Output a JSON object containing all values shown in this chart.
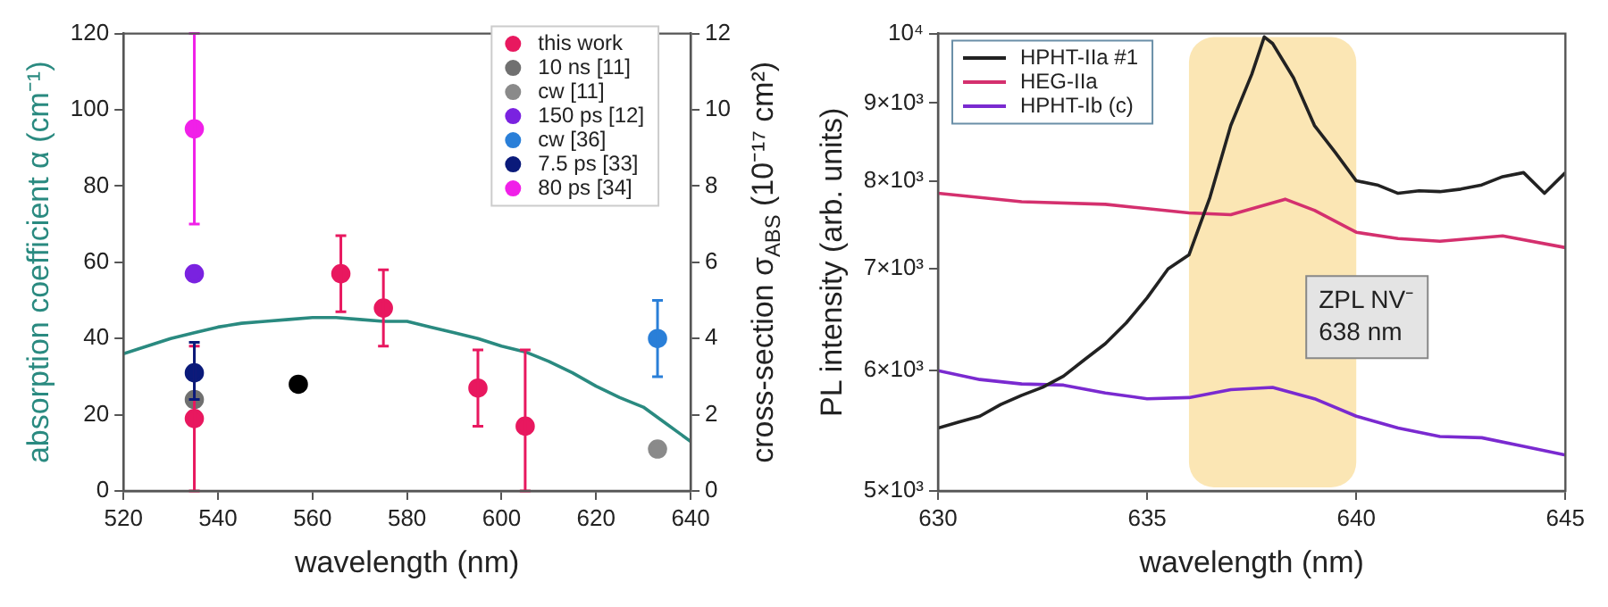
{
  "chart_data": [
    {
      "type": "scatter",
      "xlabel": "wavelength (nm)",
      "ylabel": "absorption coefficient α (cm⁻¹)",
      "y2label": "cross-section σ$_{ABS}$ (10⁻¹⁷ cm²)",
      "xlim": [
        520,
        640
      ],
      "xticks": [
        520,
        540,
        560,
        580,
        600,
        620,
        640
      ],
      "ylim": [
        0,
        120
      ],
      "yticks": [
        0,
        20,
        40,
        60,
        80,
        100,
        120
      ],
      "y2lim": [
        0,
        12
      ],
      "y2ticks": [
        0,
        2,
        4,
        6,
        8,
        10,
        12
      ],
      "legend": "top right",
      "marker": "circle",
      "series": [
        {
          "type": "line",
          "marker": "none",
          "color": "#2a8a80",
          "x": [
            520,
            525,
            530,
            535,
            540,
            545,
            550,
            555,
            560,
            565,
            570,
            575,
            580,
            585,
            590,
            595,
            600,
            605,
            610,
            615,
            620,
            625,
            630,
            635,
            640
          ],
          "values": [
            36,
            38,
            40,
            41.5,
            43,
            44,
            44.5,
            45,
            45.5,
            45.5,
            45,
            44.5,
            44.5,
            43,
            41.5,
            40,
            38,
            36.5,
            34,
            31,
            27.5,
            24.5,
            22,
            17.5,
            13
          ]
        },
        {
          "name": "this work",
          "color": "#e8185f",
          "x": [
            535,
            566,
            575,
            595,
            605
          ],
          "values": [
            19,
            57,
            48,
            27,
            17
          ],
          "errors": [
            [
              0,
              38
            ],
            [
              47,
              67
            ],
            [
              38,
              58
            ],
            [
              17,
              37
            ],
            [
              0,
              37
            ]
          ]
        },
        {
          "name": "10 ns [11]",
          "color": "#707070",
          "x": [
            535
          ],
          "values": [
            24
          ]
        },
        {
          "name": "cw [11]",
          "color": "#8a8a8a",
          "x": [
            633
          ],
          "values": [
            11
          ]
        },
        {
          "name": "150 ps [12]",
          "color": "#7a22e0",
          "x": [
            535
          ],
          "values": [
            57
          ]
        },
        {
          "name": "cw [36]",
          "color": "#2a7fd8",
          "x": [
            633
          ],
          "values": [
            40
          ],
          "errors": [
            [
              30,
              50
            ]
          ]
        },
        {
          "name": "7.5 ps [33]",
          "color": "#0a1a7a",
          "x": [
            535
          ],
          "values": [
            31
          ],
          "errors": [
            [
              24,
              39
            ]
          ]
        },
        {
          "name": "80 ps [34]",
          "color": "#f020e8",
          "x": [
            535
          ],
          "values": [
            95
          ],
          "errors": [
            [
              70,
              120
            ]
          ]
        },
        {
          "color": "#000000",
          "x": [
            557
          ],
          "values": [
            28
          ]
        }
      ]
    },
    {
      "type": "line",
      "xlabel": "wavelength (nm)",
      "ylabel": "PL intensity (arb. units)",
      "log": "y",
      "xlim": [
        630,
        645
      ],
      "xticks": [
        630,
        635,
        640,
        645
      ],
      "ylim": [
        5000,
        10000
      ],
      "yticks": [
        {
          "value": 5000,
          "label": "5×10³"
        },
        {
          "value": 6000,
          "label": "6×10³"
        },
        {
          "value": 7000,
          "label": "7×10³"
        },
        {
          "value": 8000,
          "label": "8×10³"
        },
        {
          "value": 9000,
          "label": "9×10³"
        },
        {
          "value": 10000,
          "label": "10⁴"
        }
      ],
      "legend": "top left",
      "marker": "none",
      "line_style": "solid",
      "bands": [
        {
          "axis": "x",
          "from": 636,
          "to": 640,
          "label": "ZPL NV⁻ 638 nm",
          "color": "#fbe6b4"
        }
      ],
      "series": [
        {
          "name": "HPHT-IIa #1",
          "color": "#222222",
          "x": [
            630,
            630.5,
            631,
            631.5,
            632,
            632.5,
            633,
            633.5,
            634,
            634.5,
            635,
            635.5,
            636,
            636.5,
            637,
            637.5,
            637.8,
            638,
            638.5,
            639,
            639.5,
            640,
            640.5,
            641,
            641.5,
            642,
            642.5,
            643,
            643.5,
            644,
            644.5,
            645
          ],
          "values": [
            5500,
            5550,
            5600,
            5700,
            5780,
            5850,
            5950,
            6100,
            6250,
            6450,
            6700,
            7000,
            7150,
            7800,
            8700,
            9400,
            9950,
            9850,
            9350,
            8700,
            8350,
            8000,
            7950,
            7850,
            7880,
            7870,
            7900,
            7950,
            8050,
            8100,
            7850,
            8100
          ]
        },
        {
          "name": "HEG-IIa",
          "color": "#d4306e",
          "x": [
            630,
            632,
            634,
            636,
            637,
            638.3,
            639,
            640,
            641,
            642,
            643.5,
            645
          ],
          "values": [
            7850,
            7750,
            7720,
            7620,
            7600,
            7780,
            7650,
            7400,
            7330,
            7300,
            7360,
            7230
          ]
        },
        {
          "name": "HPHT-Ib (c)",
          "color": "#7a2ad0",
          "x": [
            630,
            631,
            632,
            633,
            634,
            635,
            636,
            637,
            638,
            639,
            640,
            641,
            642,
            643,
            644,
            645
          ],
          "values": [
            6000,
            5920,
            5880,
            5870,
            5800,
            5750,
            5760,
            5830,
            5850,
            5750,
            5600,
            5500,
            5430,
            5420,
            5350,
            5280
          ]
        }
      ]
    }
  ]
}
